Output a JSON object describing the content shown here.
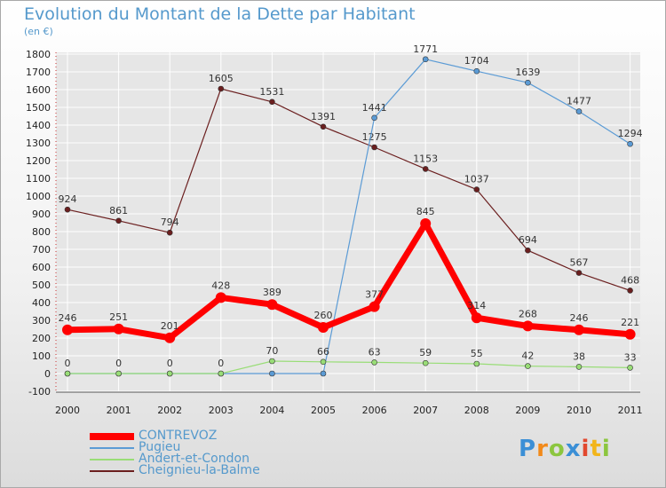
{
  "title": "Evolution du Montant de la Dette par Habitant",
  "subtitle": "(en €)",
  "logo": "Proxiti",
  "chart_data": {
    "type": "line",
    "x": [
      "2000",
      "2001",
      "2002",
      "2003",
      "2004",
      "2005",
      "2006",
      "2007",
      "2008",
      "2009",
      "2010",
      "2011"
    ],
    "ylim": [
      -100,
      1800
    ],
    "yticks": [
      -100,
      0,
      100,
      200,
      300,
      400,
      500,
      600,
      700,
      800,
      900,
      1000,
      1100,
      1200,
      1300,
      1400,
      1500,
      1600,
      1700,
      1800
    ],
    "series": [
      {
        "name": "Cheignieu-la-Balme",
        "color": "#6b1f1f",
        "values": [
          924,
          861,
          794,
          1605,
          1531,
          1391,
          1275,
          1153,
          1037,
          694,
          567,
          468
        ],
        "labels": [
          "924",
          "861",
          "794",
          "1605",
          "1531",
          "1391",
          "1275",
          "1153",
          "1037",
          "694",
          "567",
          "468"
        ]
      },
      {
        "name": "Pugieu",
        "color": "#5b9bd5",
        "values": [
          0,
          0,
          0,
          0,
          0,
          0,
          1441,
          1771,
          1704,
          1639,
          1477,
          1294
        ],
        "labels": [
          "",
          "",
          "",
          "",
          "",
          "",
          "1441",
          "1771",
          "1704",
          "1639",
          "1477",
          "1294"
        ]
      },
      {
        "name": "Andert-et-Condon",
        "color": "#99dd77",
        "values": [
          0,
          0,
          0,
          0,
          70,
          66,
          63,
          59,
          55,
          42,
          38,
          33
        ],
        "labels": [
          "0",
          "0",
          "0",
          "0",
          "70",
          "66",
          "63",
          "59",
          "55",
          "42",
          "38",
          "33"
        ]
      },
      {
        "name": "CONTREVOZ",
        "color": "#ff0000",
        "values": [
          246,
          251,
          201,
          428,
          389,
          260,
          377,
          845,
          314,
          268,
          246,
          221
        ],
        "labels": [
          "246",
          "251",
          "201",
          "428",
          "389",
          "260",
          "377",
          "845",
          "314",
          "268",
          "246",
          "221"
        ]
      }
    ],
    "legend": [
      "CONTREVOZ",
      "Pugieu",
      "Andert-et-Condon",
      "Cheignieu-la-Balme"
    ],
    "grid": true,
    "legend_position": "bottom-left"
  }
}
